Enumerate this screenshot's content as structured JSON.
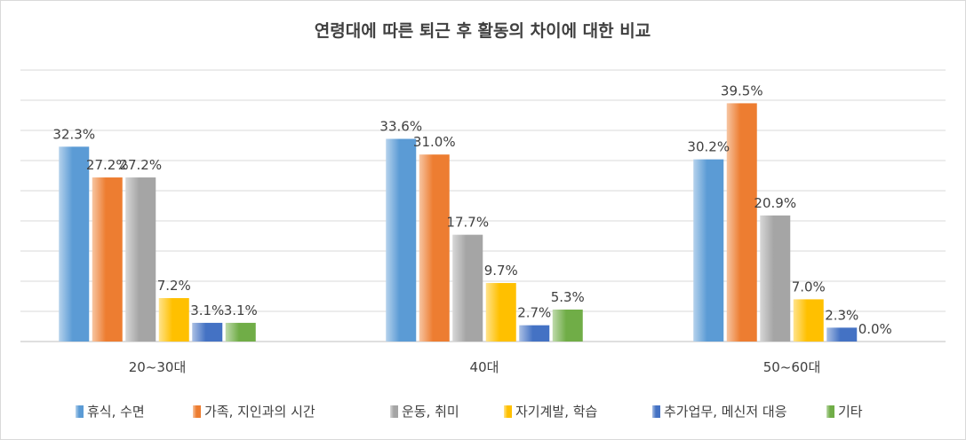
{
  "chart_data": {
    "type": "bar",
    "title": "연령대에 따른 퇴근 후 활동의 차이에 대한 비교",
    "categories": [
      "20~30대",
      "40대",
      "50~60대"
    ],
    "series": [
      {
        "name": "휴식, 수면",
        "values": [
          32.3,
          33.6,
          30.2
        ],
        "labels": [
          "32.3%",
          "33.6%",
          "30.2%"
        ],
        "color": "#5b9bd5"
      },
      {
        "name": "가족,  지인과의  시간",
        "values": [
          27.2,
          31.0,
          39.5
        ],
        "labels": [
          "27.2%",
          "31.0%",
          "39.5%"
        ],
        "color": "#ed7d31"
      },
      {
        "name": "운동, 취미",
        "values": [
          27.2,
          17.7,
          20.9
        ],
        "labels": [
          "27.2%",
          "17.7%",
          "20.9%"
        ],
        "color": "#a5a5a5"
      },
      {
        "name": "자기계발, 학습",
        "values": [
          7.2,
          9.7,
          7.0
        ],
        "labels": [
          "7.2%",
          "9.7%",
          "7.0%"
        ],
        "color": "#ffc000"
      },
      {
        "name": "추가업무, 메신저 대응",
        "values": [
          3.1,
          2.7,
          2.3
        ],
        "labels": [
          "3.1%",
          "2.7%",
          "2.3%"
        ],
        "color": "#4472c4"
      },
      {
        "name": "기타",
        "values": [
          3.1,
          5.3,
          0.0
        ],
        "labels": [
          "3.1%",
          "5.3%",
          "0.0%"
        ],
        "color": "#70ad47"
      }
    ],
    "ylim": [
      0,
      45
    ],
    "gridlines": true,
    "legend_position": "bottom"
  }
}
